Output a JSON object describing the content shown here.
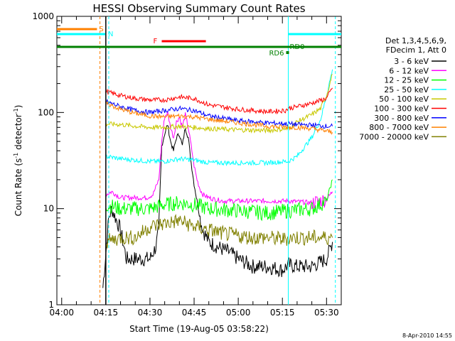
{
  "chart_data": {
    "type": "line",
    "title": "HESSI Observing Summary Count Rates",
    "xlabel": "Start Time (19-Aug-05 03:58:22)",
    "ylabel_main": "Count Rate (s",
    "ylabel_sup1": "-1",
    "ylabel_mid": " detector",
    "ylabel_sup2": "-1",
    "ylabel_end": ")",
    "yscale": "log",
    "ylim": [
      1,
      1000
    ],
    "y_ticks": [
      "1",
      "10",
      "100",
      "1000"
    ],
    "xlim": [
      "03:58:22",
      "05:35:00"
    ],
    "x_ticks": [
      "04:00",
      "04:15",
      "04:30",
      "04:45",
      "05:00",
      "05:15",
      "05:30"
    ],
    "date_stamp": "8-Apr-2010 14:55",
    "legend_header": [
      "Det 1,3,4,5,6,9,",
      "FDecim 1, Att 0"
    ],
    "flags": {
      "S": {
        "label": "S",
        "color": "#ff8000",
        "from": "03:58",
        "to": "04:12"
      },
      "N": {
        "label": "N",
        "color": "#00ffff",
        "from": "03:58",
        "to": "04:16"
      },
      "F": {
        "label": "F",
        "color": "#ff0000",
        "from": "04:34",
        "to": "04:49"
      },
      "RD0": {
        "label": "RD0",
        "color": "#008000"
      },
      "RD6": {
        "label": "RD6",
        "color": "#008000"
      }
    },
    "series": [
      {
        "name": "3 - 6 keV",
        "color": "#000000",
        "x": [
          "04:14",
          "04:16",
          "04:17",
          "04:20",
          "04:22",
          "04:24",
          "04:27",
          "04:28",
          "04:30",
          "04:32",
          "04:33",
          "04:34",
          "04:35",
          "04:36",
          "04:37",
          "04:38",
          "04:39",
          "04:40",
          "04:41",
          "04:42",
          "04:43",
          "04:44",
          "04:45",
          "04:46",
          "04:47",
          "04:48",
          "04:50",
          "04:53",
          "04:57",
          "05:00",
          "05:05",
          "05:10",
          "05:15",
          "05:17",
          "05:20",
          "05:25",
          "05:30",
          "05:32"
        ],
        "values": [
          1.5,
          8,
          10,
          6,
          3,
          3,
          3,
          3,
          3,
          4,
          6,
          45,
          60,
          75,
          50,
          40,
          55,
          60,
          45,
          70,
          55,
          30,
          18,
          12,
          8,
          6,
          4.5,
          4,
          3.5,
          3,
          2.5,
          2.5,
          2.3,
          2.6,
          2.5,
          2.5,
          3,
          4.5
        ]
      },
      {
        "name": "6 - 12 keV",
        "color": "#ff00ff",
        "x": [
          "04:15",
          "04:17",
          "04:20",
          "04:23",
          "04:26",
          "04:29",
          "04:31",
          "04:33",
          "04:34",
          "04:35",
          "04:36",
          "04:37",
          "04:38",
          "04:39",
          "04:40",
          "04:41",
          "04:42",
          "04:43",
          "04:44",
          "04:45",
          "04:46",
          "04:47",
          "04:48",
          "04:50",
          "04:52",
          "04:55",
          "05:00",
          "05:10",
          "05:17",
          "05:25",
          "05:30",
          "05:32"
        ],
        "values": [
          14,
          15,
          13,
          13,
          13,
          13,
          14,
          20,
          50,
          90,
          100,
          70,
          55,
          80,
          90,
          70,
          95,
          70,
          45,
          28,
          20,
          16,
          14,
          13,
          12.5,
          12,
          12,
          12,
          12,
          11.5,
          12.5,
          15
        ]
      },
      {
        "name": "12 - 25 keV",
        "color": "#00ff00",
        "x": [
          "04:15",
          "04:20",
          "04:25",
          "04:30",
          "04:35",
          "04:40",
          "04:45",
          "04:50",
          "05:00",
          "05:10",
          "05:17",
          "05:25",
          "05:30",
          "05:32"
        ],
        "values": [
          11,
          10,
          10,
          10,
          11,
          11.5,
          11,
          10,
          9.5,
          9,
          9.5,
          10,
          12,
          20
        ]
      },
      {
        "name": "25 - 50 keV",
        "color": "#00ffff",
        "x": [
          "04:15",
          "04:20",
          "04:25",
          "04:30",
          "04:35",
          "04:40",
          "04:45",
          "04:50",
          "05:00",
          "05:10",
          "05:17",
          "05:20",
          "05:25",
          "05:28",
          "05:30",
          "05:32"
        ],
        "values": [
          35,
          33,
          32,
          31,
          31,
          33,
          32,
          30,
          30,
          30,
          31,
          35,
          55,
          85,
          150,
          280
        ]
      },
      {
        "name": "50 - 100 keV",
        "color": "#c8c800",
        "x": [
          "04:15",
          "04:20",
          "04:25",
          "04:30",
          "04:35",
          "04:40",
          "04:45",
          "04:50",
          "05:00",
          "05:10",
          "05:17",
          "05:20",
          "05:25",
          "05:28",
          "05:30",
          "05:32"
        ],
        "values": [
          76,
          75,
          72,
          70,
          70,
          72,
          70,
          68,
          66,
          65,
          68,
          80,
          95,
          110,
          150,
          250
        ]
      },
      {
        "name": "100 - 300 keV",
        "color": "#ff0000",
        "x": [
          "04:15",
          "04:20",
          "04:25",
          "04:30",
          "04:35",
          "04:40",
          "04:45",
          "04:50",
          "05:00",
          "05:10",
          "05:16",
          "05:17",
          "05:20",
          "05:25",
          "05:30",
          "05:32"
        ],
        "values": [
          165,
          150,
          140,
          135,
          135,
          145,
          140,
          120,
          108,
          102,
          105,
          110,
          115,
          125,
          140,
          180
        ]
      },
      {
        "name": "300 - 800 keV",
        "color": "#0000ff",
        "x": [
          "04:15",
          "04:20",
          "04:25",
          "04:30",
          "04:35",
          "04:40",
          "04:45",
          "04:50",
          "05:00",
          "05:10",
          "05:17",
          "05:20",
          "05:25",
          "05:30",
          "05:32"
        ],
        "values": [
          130,
          115,
          105,
          100,
          105,
          110,
          105,
          92,
          82,
          78,
          76,
          75,
          74,
          72,
          72
        ]
      },
      {
        "name": "800 - 7000 keV",
        "color": "#ff8000",
        "x": [
          "04:15",
          "04:20",
          "04:25",
          "04:30",
          "04:35",
          "04:40",
          "04:45",
          "04:50",
          "05:00",
          "05:10",
          "05:17",
          "05:20",
          "05:25",
          "05:30",
          "05:32"
        ],
        "values": [
          125,
          108,
          98,
          92,
          90,
          92,
          90,
          85,
          78,
          72,
          70,
          70,
          68,
          64,
          62
        ]
      },
      {
        "name": "7000 - 20000 keV",
        "color": "#808000",
        "x": [
          "04:15",
          "04:20",
          "04:25",
          "04:30",
          "04:35",
          "04:40",
          "04:45",
          "04:50",
          "04:55",
          "05:00",
          "05:05",
          "05:10",
          "05:15",
          "05:18",
          "05:20",
          "05:25",
          "05:30",
          "05:32"
        ],
        "values": [
          4.5,
          5,
          5,
          6.5,
          7,
          7.5,
          6.5,
          6,
          5.5,
          5.2,
          5,
          5,
          4.8,
          5,
          5,
          5,
          5,
          5
        ]
      }
    ]
  }
}
